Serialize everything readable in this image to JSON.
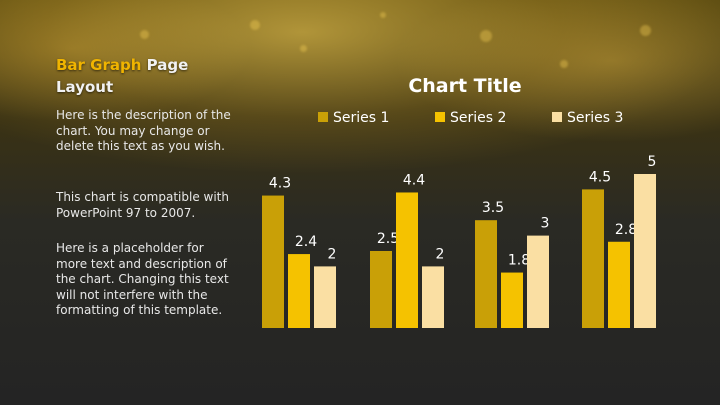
{
  "slide": {
    "title_accent": "Bar Graph",
    "title_rest": " Page Layout",
    "paragraphs": [
      "Here is the description of the chart.  You may change or delete this text as you wish.",
      "This chart is compatible with PowerPoint 97 to 2007.",
      "Here is a placeholder for more text and description of the chart.  Changing this text will not interfere with the formatting of this template."
    ]
  },
  "colors": {
    "series1": "#c9a007",
    "series2": "#f5c200",
    "series3": "#fadfa3",
    "text": "#ffffff",
    "accent": "#f0b400"
  },
  "chart_data": {
    "type": "bar",
    "title": "Chart Title",
    "categories": [
      "",
      "",
      "",
      ""
    ],
    "series": [
      {
        "name": "Series 1",
        "values": [
          4.3,
          2.5,
          3.5,
          4.5
        ]
      },
      {
        "name": "Series 2",
        "values": [
          2.4,
          4.4,
          1.8,
          2.8
        ]
      },
      {
        "name": "Series 3",
        "values": [
          2,
          2,
          3,
          5
        ]
      }
    ],
    "ylim": [
      0,
      5
    ],
    "grid": false,
    "legend": "top",
    "data_labels": true
  }
}
